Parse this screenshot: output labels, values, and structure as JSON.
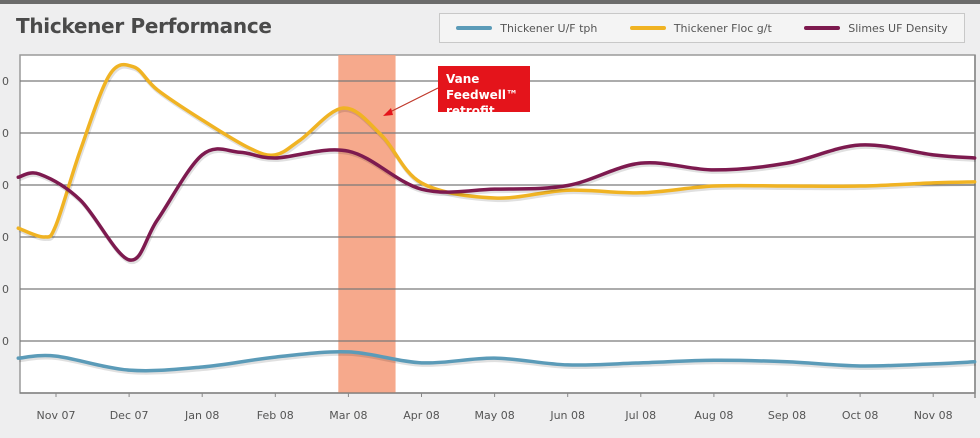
{
  "chart_data": {
    "type": "line",
    "title": "Thickener Performance",
    "categories": [
      "Nov 07",
      "Dec 07",
      "Jan 08",
      "Feb 08",
      "Mar 08",
      "Apr 08",
      "May 08",
      "Jun 08",
      "Jul 08",
      "Aug 08",
      "Sep 08",
      "Oct 08",
      "Nov 08"
    ],
    "left_tick_labels_visible": [
      "0",
      "0",
      "0",
      "0",
      "0",
      "0"
    ],
    "ylim": [
      0,
      6.5
    ],
    "grid": true,
    "legend_placement": "top-right",
    "series": [
      {
        "name": "Thickener U/F tph",
        "color": "#5b9bb8",
        "points": [
          [
            "2007-10-16",
            0.67
          ],
          [
            "2007-11-01",
            0.71
          ],
          [
            "2007-12-01",
            0.44
          ],
          [
            "2008-01-01",
            0.5
          ],
          [
            "2008-02-01",
            0.69
          ],
          [
            "2008-03-01",
            0.79
          ],
          [
            "2008-04-01",
            0.58
          ],
          [
            "2008-05-01",
            0.67
          ],
          [
            "2008-06-01",
            0.54
          ],
          [
            "2008-07-01",
            0.58
          ],
          [
            "2008-08-01",
            0.63
          ],
          [
            "2008-09-01",
            0.6
          ],
          [
            "2008-10-01",
            0.52
          ],
          [
            "2008-11-01",
            0.56
          ],
          [
            "2008-11-18",
            0.6
          ]
        ]
      },
      {
        "name": "Thickener Floc g/t",
        "color": "#f0b323",
        "points": [
          [
            "2007-10-16",
            3.17
          ],
          [
            "2007-10-27",
            3.0
          ],
          [
            "2007-11-01",
            3.23
          ],
          [
            "2007-11-11",
            4.67
          ],
          [
            "2007-11-23",
            6.12
          ],
          [
            "2007-12-03",
            6.27
          ],
          [
            "2007-12-13",
            5.83
          ],
          [
            "2008-01-01",
            5.25
          ],
          [
            "2008-01-21",
            4.71
          ],
          [
            "2008-02-01",
            4.58
          ],
          [
            "2008-02-11",
            4.87
          ],
          [
            "2008-02-28",
            5.48
          ],
          [
            "2008-03-15",
            4.96
          ],
          [
            "2008-04-01",
            4.04
          ],
          [
            "2008-05-01",
            3.75
          ],
          [
            "2008-06-01",
            3.9
          ],
          [
            "2008-07-01",
            3.85
          ],
          [
            "2008-08-01",
            3.98
          ],
          [
            "2008-09-01",
            3.98
          ],
          [
            "2008-10-01",
            3.98
          ],
          [
            "2008-11-01",
            4.04
          ],
          [
            "2008-11-18",
            4.06
          ]
        ]
      },
      {
        "name": "Slimes UF Density",
        "color": "#7d1a4f",
        "points": [
          [
            "2007-10-16",
            4.15
          ],
          [
            "2007-10-25",
            4.21
          ],
          [
            "2007-11-11",
            3.71
          ],
          [
            "2007-12-01",
            2.56
          ],
          [
            "2007-12-13",
            3.33
          ],
          [
            "2008-01-01",
            4.58
          ],
          [
            "2008-01-17",
            4.63
          ],
          [
            "2008-02-01",
            4.52
          ],
          [
            "2008-03-01",
            4.65
          ],
          [
            "2008-04-01",
            3.92
          ],
          [
            "2008-05-01",
            3.92
          ],
          [
            "2008-06-01",
            3.99
          ],
          [
            "2008-07-01",
            4.42
          ],
          [
            "2008-08-01",
            4.29
          ],
          [
            "2008-09-01",
            4.42
          ],
          [
            "2008-10-01",
            4.77
          ],
          [
            "2008-11-01",
            4.58
          ],
          [
            "2008-11-18",
            4.52
          ]
        ]
      }
    ],
    "highlight_band": {
      "from": "2008-02-26",
      "to": "2008-03-21",
      "color": "#f5a080"
    },
    "annotation": {
      "line1": "Vane Feedwell™",
      "line2": "retrofit",
      "color": "#e4141b"
    }
  }
}
